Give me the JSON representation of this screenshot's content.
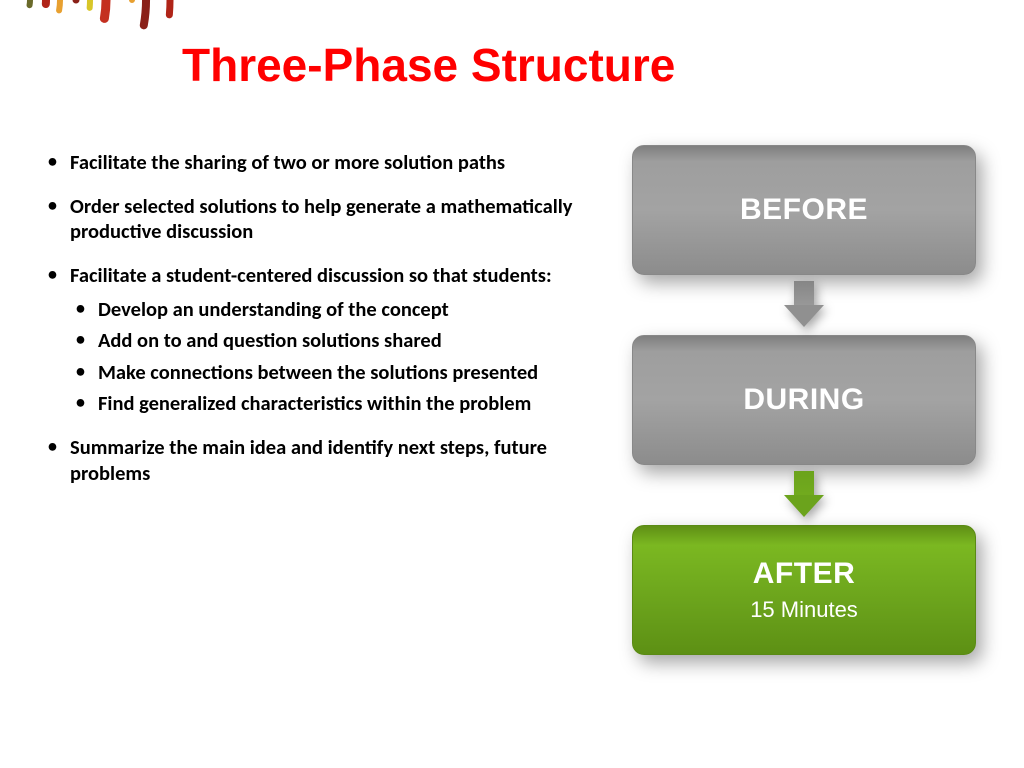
{
  "title": "Three-Phase Structure",
  "title_color": "#ff0000",
  "bullets": {
    "b1": "Facilitate the sharing of two or more solution paths",
    "b2": "Order selected solutions to help generate a mathematically productive discussion",
    "b3": "Facilitate a student-centered discussion so that students:",
    "b3_sub": {
      "s1": "Develop an understanding of the concept",
      "s2": "Add on to and question solutions shared",
      "s3": "Make connections between the solutions presented",
      "s4": "Find generalized characteristics within the problem"
    },
    "b4": "Summarize the main idea and identify next steps, future problems"
  },
  "flow": {
    "box1": {
      "label": "BEFORE",
      "color": "gray"
    },
    "box2": {
      "label": "DURING",
      "color": "gray"
    },
    "box3": {
      "label": "AFTER",
      "sublabel": "15 Minutes",
      "color": "green"
    }
  },
  "colors": {
    "gray_box": "#999999",
    "green_box": "#6ba31c",
    "text_white": "#ffffff",
    "text_black": "#000000",
    "background": "#ffffff"
  },
  "decoration_arcs": [
    {
      "r": 170,
      "stroke": "#b02418",
      "width": 7,
      "start": 10,
      "end": 95
    },
    {
      "r": 158,
      "stroke": "#d8c628",
      "width": 5,
      "start": 15,
      "end": 80
    },
    {
      "r": 146,
      "stroke": "#8a2018",
      "width": 8,
      "start": 0,
      "end": 100
    },
    {
      "r": 132,
      "stroke": "#e8a030",
      "width": 6,
      "start": 20,
      "end": 90
    },
    {
      "r": 120,
      "stroke": "#6a6a2a",
      "width": 5,
      "start": 5,
      "end": 85
    },
    {
      "r": 106,
      "stroke": "#c43020",
      "width": 9,
      "start": 0,
      "end": 100
    },
    {
      "r": 90,
      "stroke": "#d8c628",
      "width": 6,
      "start": 10,
      "end": 95
    },
    {
      "r": 76,
      "stroke": "#8a2018",
      "width": 7,
      "start": 0,
      "end": 90
    },
    {
      "r": 60,
      "stroke": "#e8a030",
      "width": 6,
      "start": 15,
      "end": 100
    },
    {
      "r": 46,
      "stroke": "#b02418",
      "width": 8,
      "start": 0,
      "end": 95
    },
    {
      "r": 30,
      "stroke": "#6a6a2a",
      "width": 6,
      "start": 0,
      "end": 100
    }
  ]
}
